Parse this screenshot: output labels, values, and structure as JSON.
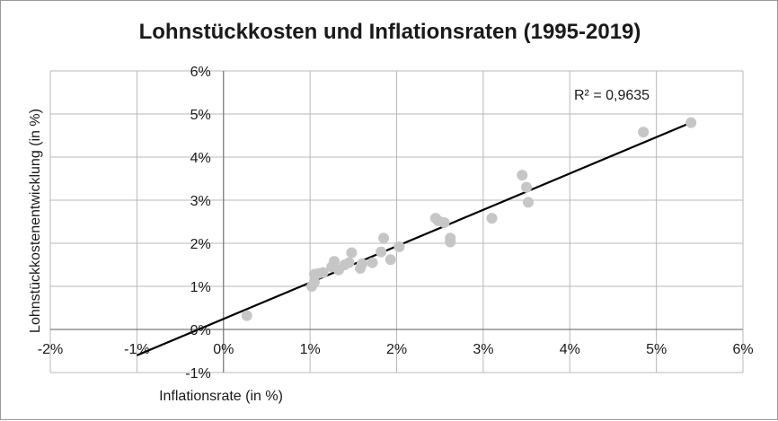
{
  "chart_data": {
    "type": "scatter",
    "title": "Lohnstückkosten und Inflationsraten (1995-2019)",
    "xlabel": "Inflationsrate (in %)",
    "ylabel": "Lohnstückkostenentwicklung (in %)",
    "xlim": [
      -2,
      6
    ],
    "ylim": [
      -1,
      6
    ],
    "x_ticks": [
      "-2%",
      "-1%",
      "0%",
      "1%",
      "2%",
      "3%",
      "4%",
      "5%",
      "6%"
    ],
    "y_ticks": [
      "-1%",
      "0%",
      "1%",
      "2%",
      "3%",
      "4%",
      "5%",
      "6%"
    ],
    "grid": true,
    "point_color": "#c6c6c6",
    "trend_color": "#000000",
    "series": [
      {
        "points": [
          [
            0.27,
            0.32
          ],
          [
            1.02,
            1.0
          ],
          [
            1.05,
            1.1
          ],
          [
            1.05,
            1.28
          ],
          [
            1.1,
            1.3
          ],
          [
            1.15,
            1.32
          ],
          [
            1.25,
            1.45
          ],
          [
            1.28,
            1.58
          ],
          [
            1.33,
            1.38
          ],
          [
            1.4,
            1.5
          ],
          [
            1.45,
            1.55
          ],
          [
            1.48,
            1.78
          ],
          [
            1.58,
            1.42
          ],
          [
            1.6,
            1.52
          ],
          [
            1.72,
            1.55
          ],
          [
            1.82,
            1.8
          ],
          [
            1.85,
            2.12
          ],
          [
            1.93,
            1.62
          ],
          [
            2.03,
            1.92
          ],
          [
            2.45,
            2.58
          ],
          [
            2.48,
            2.52
          ],
          [
            2.55,
            2.48
          ],
          [
            2.62,
            2.12
          ],
          [
            2.62,
            2.03
          ],
          [
            3.1,
            2.58
          ],
          [
            3.45,
            3.58
          ],
          [
            3.5,
            3.3
          ],
          [
            3.52,
            2.95
          ],
          [
            4.85,
            4.58
          ],
          [
            5.4,
            4.8
          ]
        ]
      }
    ],
    "trendline": {
      "x_start": -1.0,
      "x_end": 5.4,
      "y_start": -0.6,
      "y_end": 4.8
    },
    "annotation": "R² = 0,9635"
  }
}
